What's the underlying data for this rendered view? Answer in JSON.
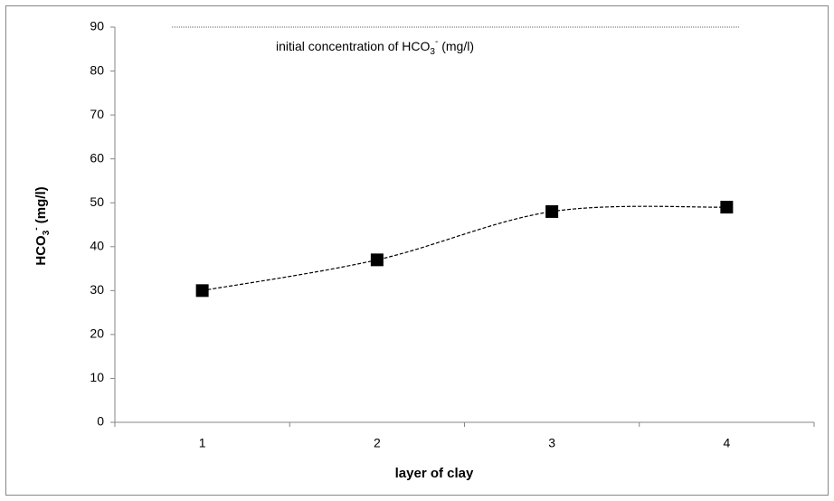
{
  "chart_data": {
    "type": "line",
    "x_label": "layer of clay",
    "y_label": [
      {
        "text": "HCO"
      },
      {
        "text": "3",
        "script": "sub"
      },
      {
        "text": "-",
        "script": "super"
      },
      {
        "text": " (mg/l)"
      }
    ],
    "categories": [
      "1",
      "2",
      "3",
      "4"
    ],
    "series": [
      {
        "values": [
          30,
          37,
          48,
          49
        ],
        "color": "#000000",
        "marker": "square",
        "line_style": "dashed",
        "smooth": true
      }
    ],
    "reference_line": {
      "value": 90,
      "color": "#999999",
      "label": [
        {
          "text": "initial concentration of HCO"
        },
        {
          "text": "3",
          "script": "sub"
        },
        {
          "text": "-",
          "script": "super"
        },
        {
          "text": " (mg/l)"
        }
      ]
    },
    "ylim": [
      0,
      90
    ],
    "yticks": [
      0,
      10,
      20,
      30,
      40,
      50,
      60,
      70,
      80,
      90
    ],
    "grid": false
  }
}
